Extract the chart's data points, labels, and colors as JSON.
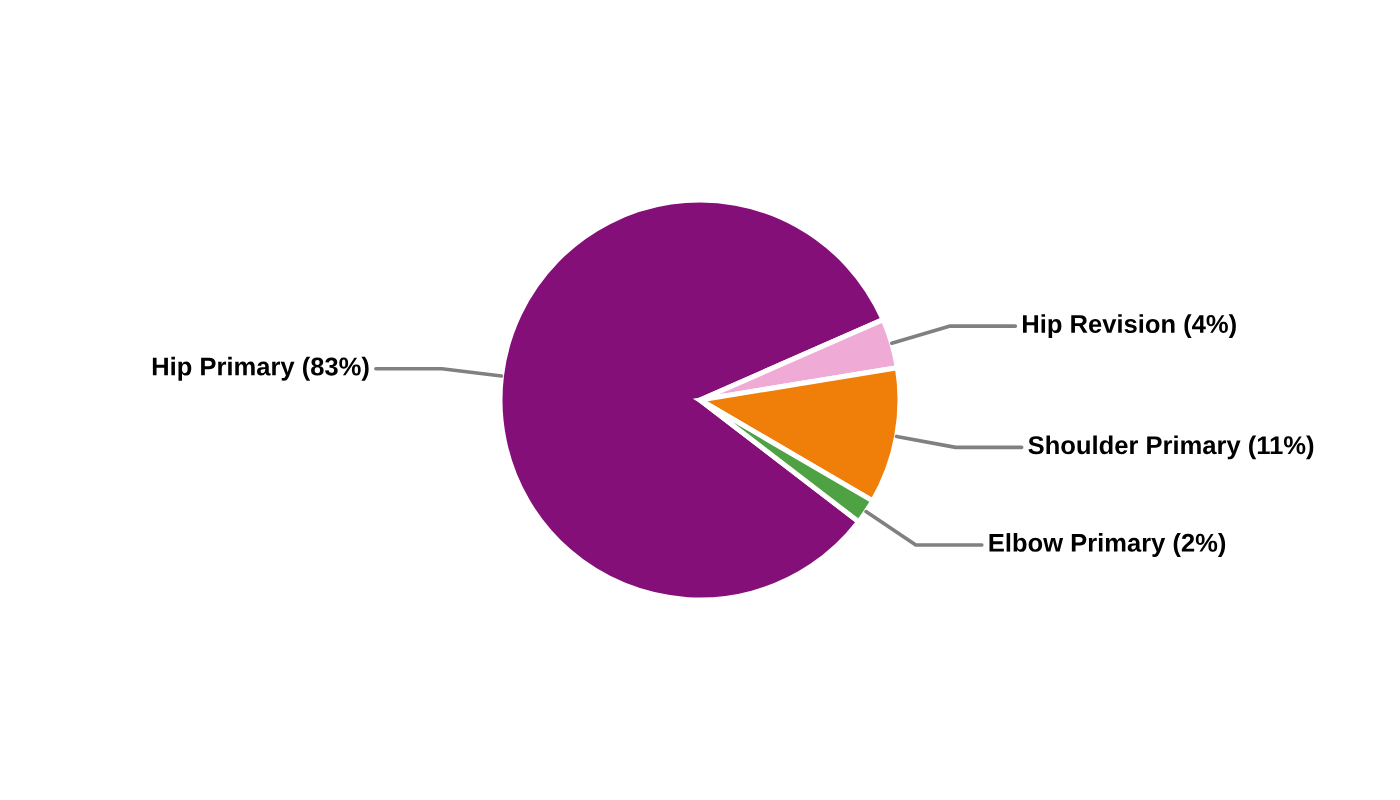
{
  "chart_data": {
    "type": "pie",
    "categories": [
      "Hip Primary (83%)",
      "Hip Revision (4%)",
      "Shoulder Primary (11%)",
      "Elbow Primary (2%)"
    ],
    "values": [
      83,
      4,
      11,
      2
    ],
    "colors": [
      "#840f78",
      "#f0aad6",
      "#f07f09",
      "#4ea244"
    ]
  }
}
